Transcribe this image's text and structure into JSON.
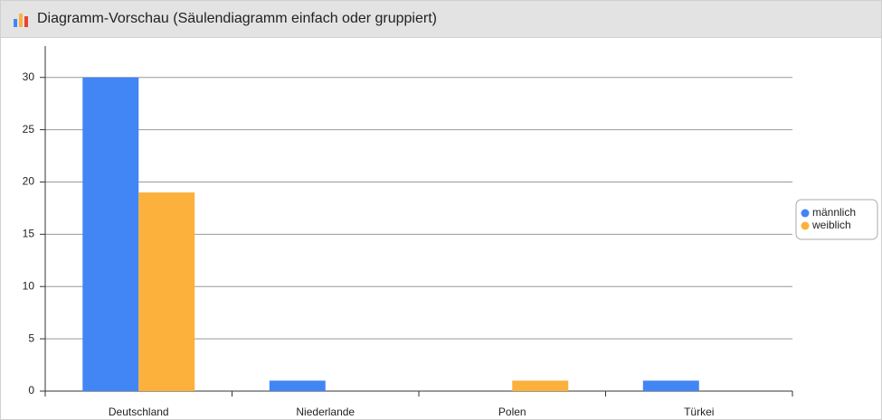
{
  "header": {
    "title": "Diagramm-Vorschau (Säulendiagramm einfach oder gruppiert)"
  },
  "chart_data": {
    "type": "bar",
    "categories": [
      "Deutschland",
      "Niederlande",
      "Polen",
      "Türkei"
    ],
    "series": [
      {
        "name": "männlich",
        "color": "#4285f4",
        "values": [
          30,
          1,
          0,
          1
        ]
      },
      {
        "name": "weiblich",
        "color": "#fbb13c",
        "values": [
          19,
          0,
          1,
          0
        ]
      }
    ],
    "ylim": [
      0,
      33
    ],
    "yticks": [
      0,
      5,
      10,
      15,
      20,
      25,
      30
    ],
    "grid": true,
    "legend": "right"
  }
}
